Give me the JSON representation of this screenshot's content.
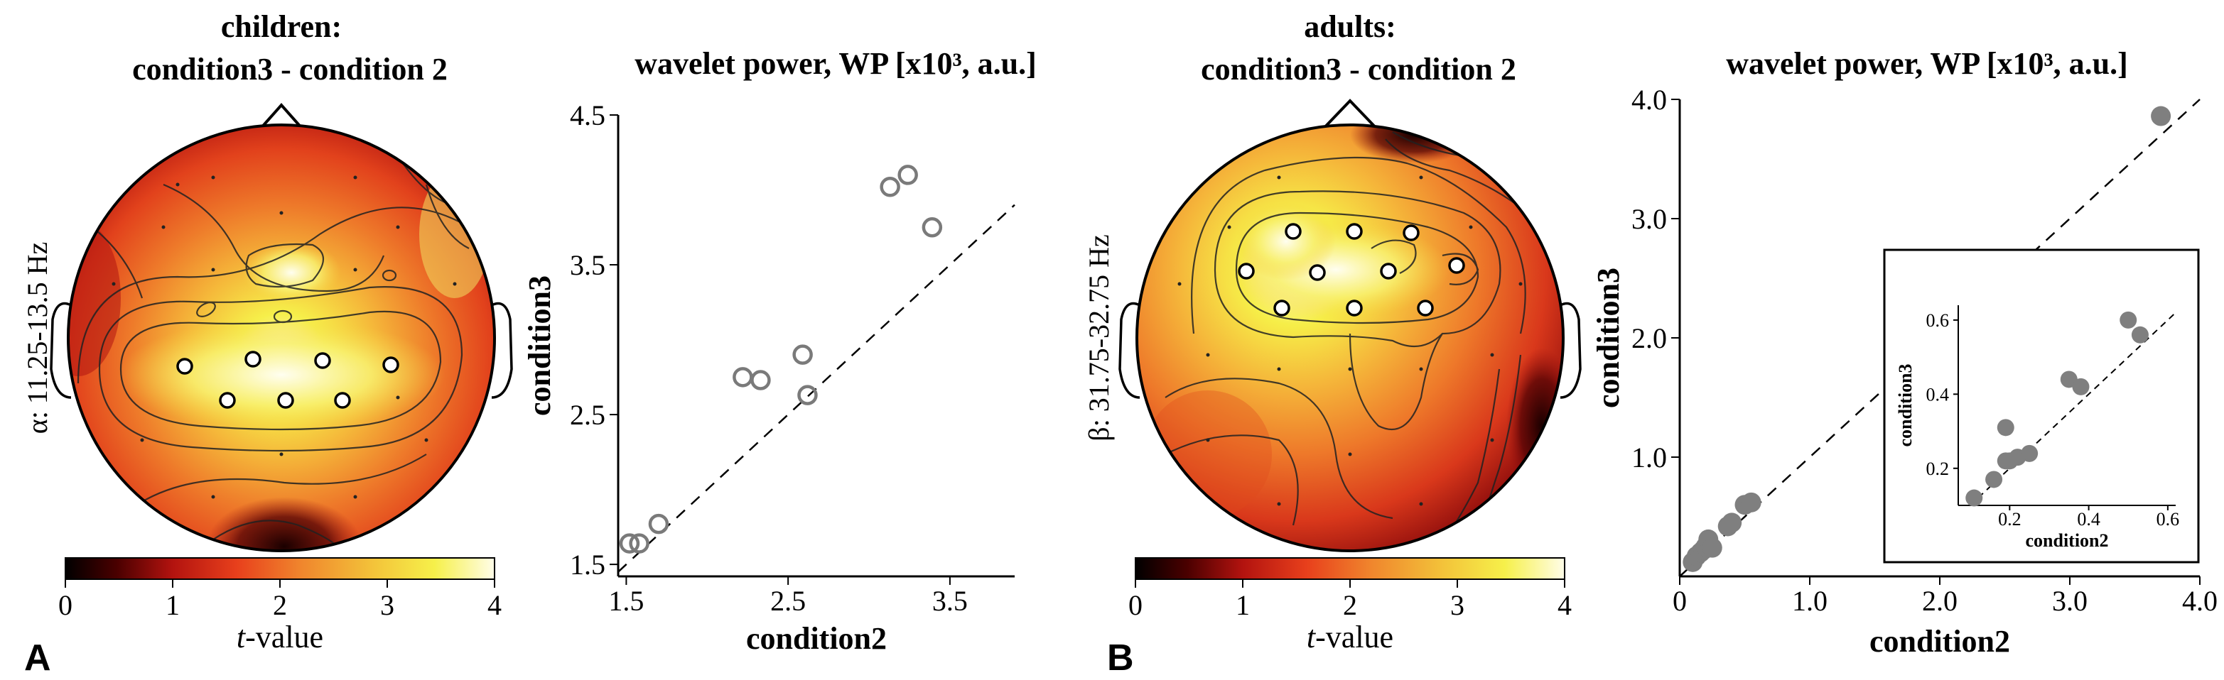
{
  "panels": {
    "A": {
      "label": "A",
      "topo_title_1": "children:",
      "topo_title_2": "condition3 - condition 2",
      "band_label": "α: 11.25-13.5 Hz",
      "colorbar_ticks": [
        "0",
        "1",
        "2",
        "3",
        "4"
      ],
      "colorbar_label_italic": "t",
      "colorbar_label_rest": "-value"
    },
    "B": {
      "label": "B",
      "topo_title_1": "adults:",
      "topo_title_2": "condition3 - condition 2",
      "band_label": "β: 31.75-32.75 Hz",
      "colorbar_ticks": [
        "0",
        "1",
        "2",
        "3",
        "4"
      ],
      "colorbar_label_italic": "t",
      "colorbar_label_rest": "-value"
    }
  },
  "colors": {
    "scatter_open_stroke": "#7a7a7a",
    "scatter_filled": "#7f7f7f",
    "electrode_fill": "#ffffff",
    "electrode_stroke": "#000000"
  },
  "chart_data": [
    {
      "id": "scatterA",
      "type": "scatter",
      "title": "wavelet power, WP [x10³, a.u.]",
      "xlabel": "condition2",
      "ylabel": "condition3",
      "xlim": [
        1.45,
        3.9
      ],
      "ylim": [
        1.42,
        4.5
      ],
      "xticks": [
        1.5,
        2.5,
        3.5
      ],
      "xtick_labels": [
        "1.5",
        "2.5",
        "3.5"
      ],
      "yticks": [
        1.5,
        2.5,
        3.5,
        4.5
      ],
      "ytick_labels": [
        "1.5",
        "2.5",
        "3.5",
        "4.5"
      ],
      "marker": "open-circle",
      "diagonal": "y = x (dashed)",
      "x": [
        1.52,
        1.58,
        1.7,
        2.22,
        2.33,
        2.59,
        2.62,
        3.13,
        3.24,
        3.39
      ],
      "y": [
        1.64,
        1.64,
        1.77,
        2.75,
        2.73,
        2.9,
        2.63,
        4.02,
        4.1,
        3.75
      ]
    },
    {
      "id": "scatterB",
      "type": "scatter",
      "title": "wavelet power, WP [x10³, a.u.]",
      "xlabel": "condition2",
      "ylabel": "condition3",
      "xlim": [
        0,
        4.0
      ],
      "ylim": [
        0,
        4.0
      ],
      "xticks": [
        0,
        1,
        2,
        3,
        4
      ],
      "xtick_labels": [
        "0",
        "1.0",
        "2.0",
        "3.0",
        "4.0"
      ],
      "yticks": [
        1,
        2,
        3,
        4
      ],
      "ytick_labels": [
        "1.0",
        "2.0",
        "3.0",
        "4.0"
      ],
      "marker": "filled-circle",
      "diagonal": "y = x (dashed)",
      "x": [
        0.1,
        0.13,
        0.16,
        0.18,
        0.2,
        0.22,
        0.25,
        0.37,
        0.4,
        0.5,
        0.55,
        3.7
      ],
      "y": [
        0.12,
        0.17,
        0.2,
        0.22,
        0.25,
        0.31,
        0.24,
        0.42,
        0.45,
        0.6,
        0.62,
        3.86
      ]
    },
    {
      "id": "insetB",
      "type": "scatter",
      "title": "",
      "xlabel": "condition2",
      "ylabel": "condition3",
      "xlim": [
        0.07,
        0.62
      ],
      "ylim": [
        0.1,
        0.64
      ],
      "xticks": [
        0.2,
        0.4,
        0.6
      ],
      "xtick_labels": [
        "0.2",
        "0.4",
        "0.6"
      ],
      "yticks": [
        0.2,
        0.4,
        0.6
      ],
      "ytick_labels": [
        "0.2",
        "0.4",
        "0.6"
      ],
      "marker": "filled-circle",
      "diagonal": "y = x (dashed)",
      "x": [
        0.11,
        0.16,
        0.19,
        0.19,
        0.2,
        0.22,
        0.25,
        0.35,
        0.38,
        0.5,
        0.53
      ],
      "y": [
        0.12,
        0.17,
        0.22,
        0.31,
        0.22,
        0.23,
        0.24,
        0.44,
        0.42,
        0.6,
        0.56
      ]
    }
  ]
}
